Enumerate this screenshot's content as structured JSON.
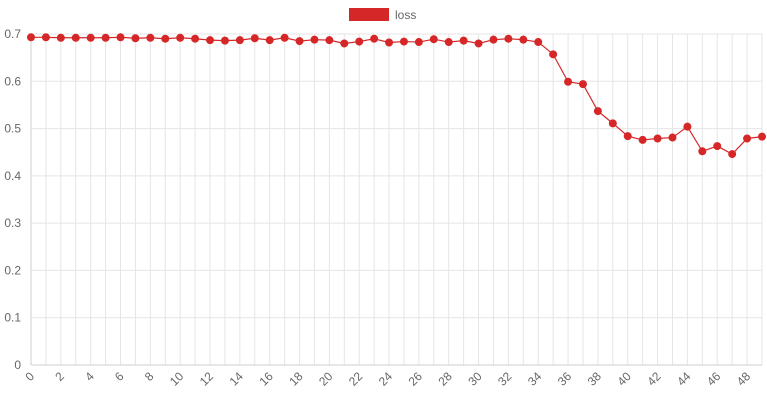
{
  "colors": {
    "series": "#d62728",
    "grid": "#e5e5e5",
    "text": "#666666"
  },
  "chart_data": {
    "type": "line",
    "legend_position": "top",
    "grid": true,
    "xlim": [
      0,
      49
    ],
    "ylim": [
      0,
      0.7
    ],
    "x_ticks": [
      "0",
      "2",
      "4",
      "6",
      "8",
      "10",
      "12",
      "14",
      "16",
      "18",
      "20",
      "22",
      "24",
      "26",
      "28",
      "30",
      "32",
      "34",
      "36",
      "38",
      "40",
      "42",
      "44",
      "46",
      "48"
    ],
    "y_ticks": [
      "0",
      "0.1",
      "0.2",
      "0.3",
      "0.4",
      "0.5",
      "0.6",
      "0.7"
    ],
    "series": [
      {
        "name": "loss",
        "color": "#d62728",
        "x": [
          0,
          1,
          2,
          3,
          4,
          5,
          6,
          7,
          8,
          9,
          10,
          11,
          12,
          13,
          14,
          15,
          16,
          17,
          18,
          19,
          20,
          21,
          22,
          23,
          24,
          25,
          26,
          27,
          28,
          29,
          30,
          31,
          32,
          33,
          34,
          35,
          36,
          37,
          38,
          39,
          40,
          41,
          42,
          43,
          44,
          45,
          46,
          47,
          48,
          49
        ],
        "y": [
          0.693,
          0.693,
          0.692,
          0.692,
          0.692,
          0.692,
          0.693,
          0.691,
          0.692,
          0.69,
          0.692,
          0.69,
          0.687,
          0.686,
          0.687,
          0.691,
          0.687,
          0.692,
          0.685,
          0.688,
          0.687,
          0.68,
          0.684,
          0.69,
          0.682,
          0.684,
          0.683,
          0.689,
          0.683,
          0.686,
          0.68,
          0.688,
          0.69,
          0.688,
          0.683,
          0.657,
          0.599,
          0.594,
          0.537,
          0.511,
          0.484,
          0.476,
          0.479,
          0.481,
          0.504,
          0.452,
          0.463,
          0.446,
          0.479,
          0.483
        ]
      }
    ]
  }
}
